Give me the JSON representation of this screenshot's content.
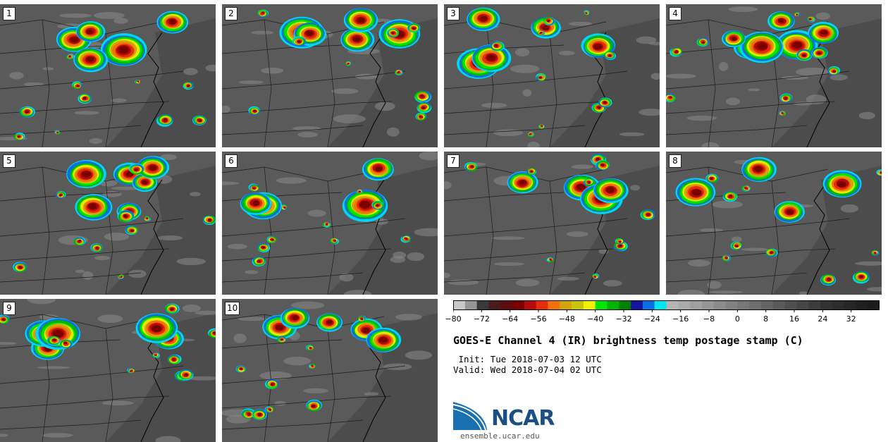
{
  "panels": [
    {
      "label": "1"
    },
    {
      "label": "2"
    },
    {
      "label": "3"
    },
    {
      "label": "4"
    },
    {
      "label": "5"
    },
    {
      "label": "6"
    },
    {
      "label": "7"
    },
    {
      "label": "8"
    },
    {
      "label": "9"
    },
    {
      "label": "10"
    }
  ],
  "colorbar": {
    "min": -80,
    "max": 40,
    "colors": [
      "#c8c8c8",
      "#969696",
      "#3a3a3a",
      "#4b1c1c",
      "#5e0c0c",
      "#7a0000",
      "#b40c0c",
      "#e62d0a",
      "#f0700a",
      "#d2a40a",
      "#c8c40a",
      "#f0f000",
      "#00e600",
      "#00b400",
      "#008200",
      "#1414a0",
      "#0a6ee6",
      "#00e6f0",
      "#b4b4b4",
      "#aaaaaa",
      "#a0a0a0",
      "#969696",
      "#8c8c8c",
      "#828282",
      "#787878",
      "#6e6e6e",
      "#646464",
      "#5a5a5a",
      "#505050",
      "#464646",
      "#3c3c3c",
      "#323232",
      "#2c2c2c",
      "#262626",
      "#202020",
      "#1c1c1c"
    ],
    "ticks": [
      "−80",
      "−72",
      "−64",
      "−56",
      "−48",
      "−40",
      "−32",
      "−24",
      "−16",
      "−8",
      "0",
      "8",
      "16",
      "24",
      "32"
    ]
  },
  "title": "GOES-E Channel 4 (IR) brightness temp postage stamp (C)",
  "init_line": " Init: Tue 2018-07-03 12 UTC",
  "valid_line": "Valid: Wed 2018-07-04 02 UTC",
  "logo": {
    "name": "NCAR",
    "url": "ensemble.ucar.edu"
  }
}
